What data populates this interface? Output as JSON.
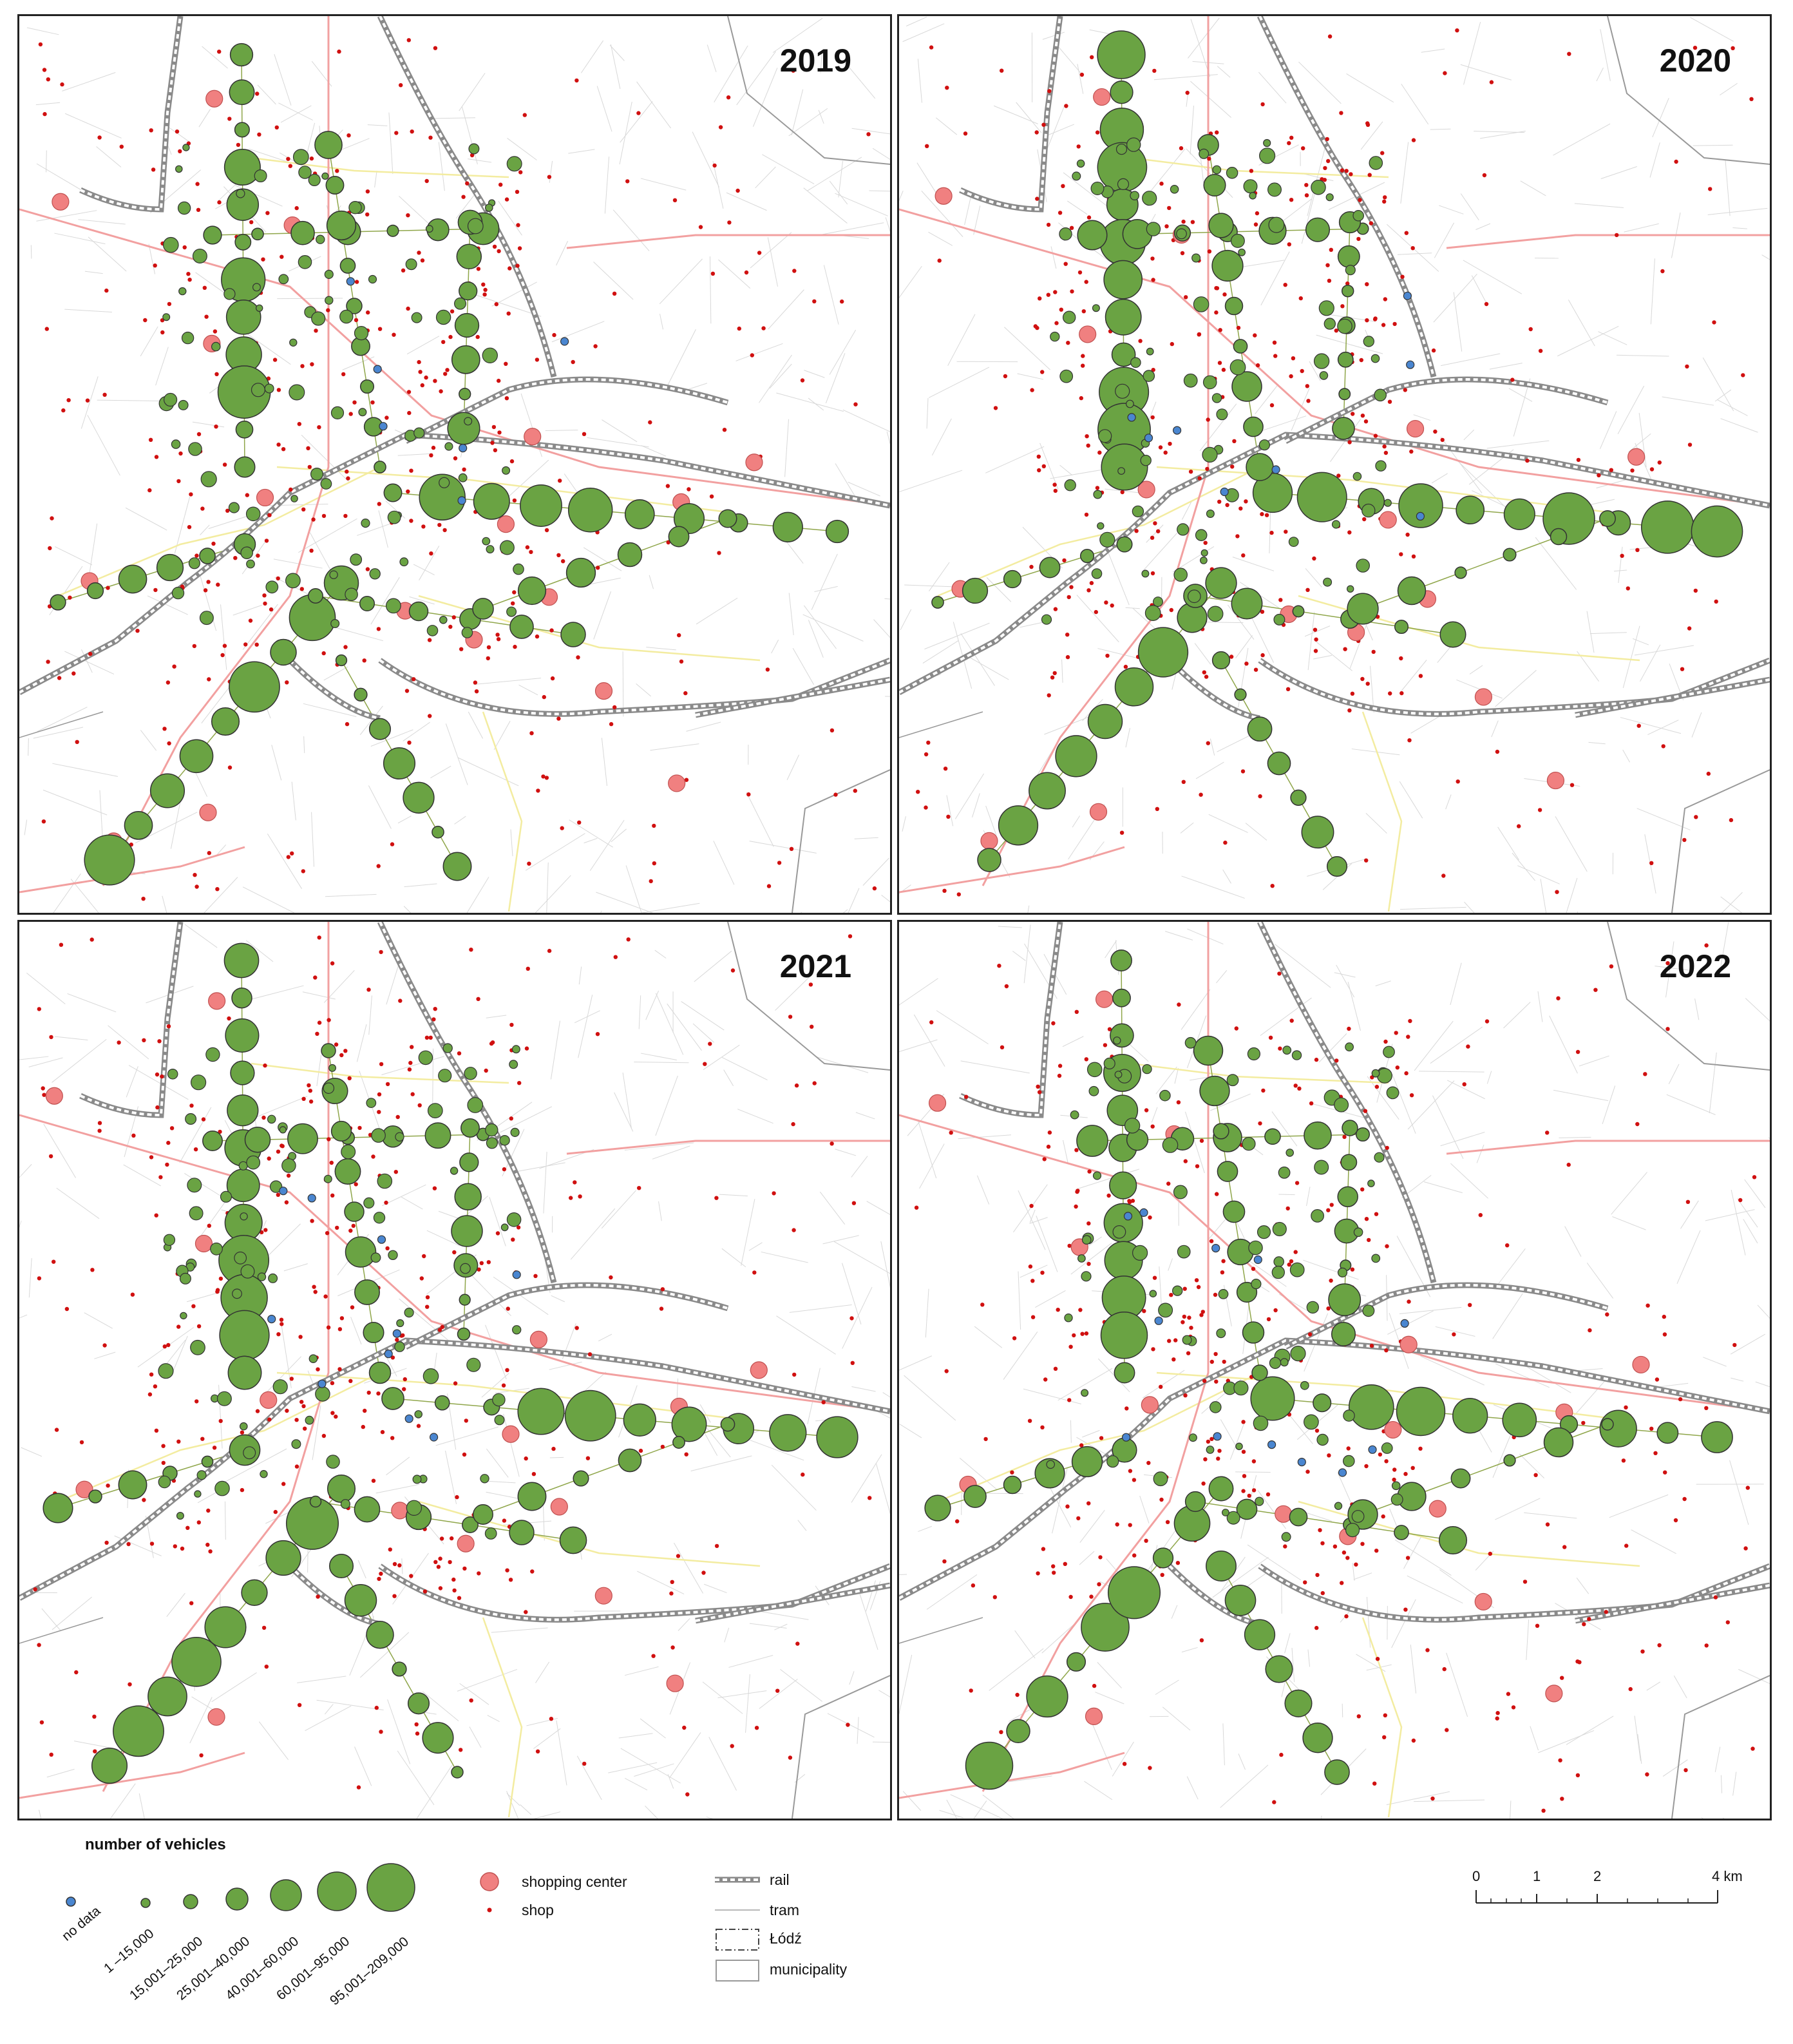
{
  "panels": [
    {
      "year": "2019"
    },
    {
      "year": "2020"
    },
    {
      "year": "2021"
    },
    {
      "year": "2022"
    }
  ],
  "legend": {
    "title": "number of vehicles",
    "classes": [
      "no data",
      "1 –15,000",
      "15,001–25,000",
      "25,001–40,000",
      "40,001–60,000",
      "60,001–95,000",
      "95,001–209,000"
    ],
    "layers": {
      "shopping_center": "shopping center",
      "shop": "shop",
      "rail": "rail",
      "tram": "tram",
      "city": "Łódź",
      "municipality": "municipality"
    },
    "colors": {
      "traffic": "#6aa343",
      "no_data": "#4a86d0",
      "shopping_center": "#f08080",
      "shop": "#d01010",
      "rail": "#8a8a8a",
      "tram": "#b8b8b8",
      "main_road": "#f2a0a0",
      "secondary_road": "#f3eca0"
    }
  },
  "scale_bar": {
    "labels": [
      "0",
      "1",
      "2",
      "4 km"
    ]
  }
}
